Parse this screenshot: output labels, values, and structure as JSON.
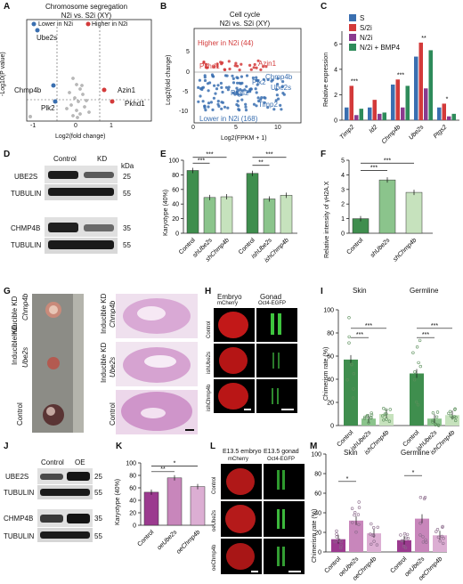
{
  "panel_letters": [
    "A",
    "B",
    "C",
    "D",
    "E",
    "F",
    "G",
    "H",
    "I",
    "J",
    "K",
    "L",
    "M"
  ],
  "panelA": {
    "title": "Chromosome segregation",
    "subtitle": "N2i vs. S2i (XY)",
    "legend_lower": "Lower in N2i",
    "legend_higher": "Higher in N2i",
    "ylabel": "-Log10(P value)",
    "xlabel": "Log2(fold change)",
    "xticks": [
      "-1",
      "0",
      "1"
    ],
    "genes": [
      "Ube2s",
      "Chmp4b",
      "Plk2",
      "Azin1",
      "Pkhd1"
    ],
    "colors": {
      "lower": "#3a6fb0",
      "higher": "#d33a3a",
      "ns": "#b8b8b8"
    }
  },
  "panelB": {
    "title": "Cell cycle",
    "subtitle": "N2i vs. S2i (XY)",
    "higher_label": "Higher in N2i (44)",
    "lower_label": "Lower in N2i (168)",
    "ylabel": "Log2(fold change)",
    "xlabel": "Log2(FPKM + 1)",
    "xticks": [
      "0",
      "5",
      "10"
    ],
    "yticks": [
      "5",
      "0",
      "-5",
      "-10"
    ],
    "genes": [
      "Azin1",
      "Pkhd1",
      "Plk2",
      "Chmp4b",
      "Ube2s",
      "Ptgs2",
      "Timp2"
    ]
  },
  "panelC": {
    "chart_data": {
      "type": "bar",
      "ylabel": "Relative expression",
      "ylim": [
        0,
        7
      ],
      "yticks": [
        "0",
        "2",
        "4",
        "6"
      ],
      "categories": [
        "Timp2",
        "Id2",
        "Chmp4b",
        "Ube2s",
        "Ptgs2"
      ],
      "series": [
        {
          "name": "S",
          "color": "#3a6fb0",
          "values": [
            1,
            1,
            2.8,
            5.0,
            1
          ]
        },
        {
          "name": "S/2i",
          "color": "#d33a3a",
          "values": [
            2.7,
            1.6,
            3.2,
            6.1,
            1.3
          ]
        },
        {
          "name": "N/2i",
          "color": "#8a3a8e",
          "values": [
            0.4,
            0.5,
            1.0,
            2.5,
            0.3
          ]
        },
        {
          "name": "N/2i + BMP4",
          "color": "#2e8b5a",
          "values": [
            0.9,
            0.6,
            2.7,
            5.5,
            0.5
          ]
        }
      ],
      "sig": [
        "***",
        "",
        "***",
        "**",
        "*"
      ]
    }
  },
  "panelD": {
    "cols": [
      "Control",
      "KD"
    ],
    "rows": [
      "UBE2S",
      "TUBULIN",
      "CHMP4B",
      "TUBULIN"
    ],
    "kda_label": "kDa",
    "kda": [
      "25",
      "55",
      "35",
      "55"
    ]
  },
  "panelE": {
    "chart_data": {
      "type": "bar",
      "ylabel": "Karyotype (40%)",
      "ylim": [
        0,
        100
      ],
      "yticks": [
        "0",
        "20",
        "40",
        "60",
        "80",
        "100"
      ],
      "categories": [
        "Control",
        "shUbe2s",
        "shChmp4b",
        "Control",
        "ishUbe2s",
        "ishChmp4b"
      ],
      "values": [
        86,
        49,
        50,
        82,
        47,
        52
      ],
      "colors": [
        "#3f8e4e",
        "#8bc48c",
        "#c6e2bd",
        "#3f8e4e",
        "#8bc48c",
        "#c6e2bd"
      ],
      "sig": [
        "***",
        "***",
        "**",
        "***"
      ]
    }
  },
  "panelF": {
    "chart_data": {
      "type": "bar",
      "ylabel": "Relative intensity of γH2A.X",
      "ylim": [
        0,
        5
      ],
      "yticks": [
        "0",
        "1",
        "2",
        "3",
        "4",
        "5"
      ],
      "categories": [
        "Control",
        "shUbe2s",
        "shChmp4b"
      ],
      "values": [
        1.0,
        3.65,
        2.8
      ],
      "colors": [
        "#3f8e4e",
        "#8bc48c",
        "#c6e2bd"
      ],
      "sig": [
        "***",
        "***"
      ]
    }
  },
  "panelG": {
    "labels_left": [
      "Inducible KD",
      "Chmp4b",
      "Ube2s",
      "Control"
    ],
    "labels_right": [
      "Inducible KD",
      "Chmp4b",
      "Ube2s",
      "Control"
    ]
  },
  "panelH": {
    "col1": "Embryo",
    "col2": "Gonad",
    "col1_sub": "mCherry",
    "col2_sub": "Oct4-EGFP",
    "rows": [
      "Control",
      "ishUbe2s",
      "ishChmp4b"
    ]
  },
  "panelI": {
    "chart_data": {
      "type": "bar",
      "ylabel": "Chimerism rate (%)",
      "ylim": [
        0,
        100
      ],
      "yticks": [
        "0",
        "20",
        "40",
        "60",
        "80",
        "100"
      ],
      "groups": [
        "Skin",
        "Germline"
      ],
      "categories": [
        "Control",
        "ishUbe2s",
        "ishChmp4b",
        "Control",
        "ishUbe2s",
        "ishChmp4b"
      ],
      "values": [
        57,
        6,
        10,
        45,
        6,
        9
      ],
      "sig": [
        "***",
        "***",
        "***",
        "***"
      ]
    }
  },
  "panelJ": {
    "cols": [
      "Control",
      "OE"
    ],
    "rows": [
      "UBE2S",
      "TUBULIN",
      "CHMP4B",
      "TUBULIN"
    ],
    "kda": [
      "25",
      "55",
      "35",
      "55"
    ]
  },
  "panelK": {
    "chart_data": {
      "type": "bar",
      "ylabel": "Karyotype (40%)",
      "ylim": [
        0,
        100
      ],
      "yticks": [
        "0",
        "20",
        "40",
        "60",
        "80",
        "100"
      ],
      "categories": [
        "Control",
        "oeUbe2s",
        "oeChmp4b"
      ],
      "values": [
        53,
        76,
        62
      ],
      "colors": [
        "#9b3a8f",
        "#c886bb",
        "#dcaed3"
      ],
      "sig": [
        "**",
        "*"
      ]
    }
  },
  "panelL": {
    "col1": "E13.5 embryo",
    "col2": "E13.5 gonad",
    "col1_sub": "mCherry",
    "col2_sub": "Oct4-EGFP",
    "rows": [
      "Control",
      "oeUbe2s",
      "oeChmp4b"
    ]
  },
  "panelM": {
    "chart_data": {
      "type": "bar",
      "ylabel": "Chimerism rate (%)",
      "ylim": [
        0,
        100
      ],
      "yticks": [
        "0",
        "20",
        "40",
        "60",
        "80",
        "100"
      ],
      "groups": [
        "Skin",
        "Germline"
      ],
      "categories": [
        "Control",
        "oeUbe2s",
        "oeChmp4b",
        "Control",
        "oeUbe2s",
        "oeChmp4b"
      ],
      "values": [
        13,
        32,
        19,
        12,
        34,
        17
      ],
      "sig": [
        "*",
        "*"
      ]
    }
  }
}
